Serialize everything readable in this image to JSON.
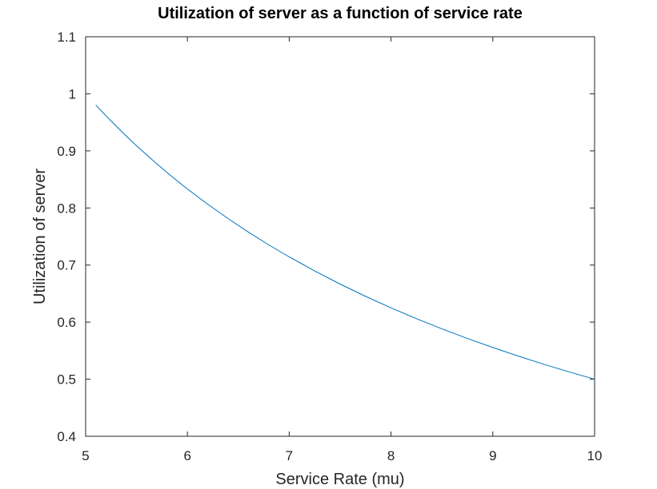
{
  "chart_data": {
    "type": "line",
    "title": "Utilization of server as a function of service rate",
    "xlabel": "Service Rate (mu)",
    "ylabel": "Utilization of server",
    "xlim": [
      5,
      10
    ],
    "ylim": [
      0.4,
      1.1
    ],
    "xticks": [
      5,
      6,
      7,
      8,
      9,
      10
    ],
    "xtick_labels": [
      "5",
      "6",
      "7",
      "8",
      "9",
      "10"
    ],
    "yticks": [
      0.4,
      0.5,
      0.6,
      0.7,
      0.8,
      0.9,
      1.0,
      1.1
    ],
    "ytick_labels": [
      "0.4",
      "0.5",
      "0.6",
      "0.7",
      "0.8",
      "0.9",
      "1",
      "1.1"
    ],
    "grid": false,
    "box": true,
    "series": [
      {
        "color": "#0072bd",
        "x": [
          5.1,
          5.2,
          5.3,
          5.4,
          5.5,
          5.6,
          5.7,
          5.8,
          5.9,
          6.0,
          6.2,
          6.4,
          6.6,
          6.8,
          7.0,
          7.25,
          7.5,
          7.75,
          8.0,
          8.25,
          8.5,
          8.75,
          9.0,
          9.25,
          9.5,
          9.75,
          10.0
        ],
        "y": [
          0.9804,
          0.9615,
          0.9434,
          0.9259,
          0.9091,
          0.8929,
          0.8772,
          0.8621,
          0.8475,
          0.8333,
          0.8065,
          0.7813,
          0.7576,
          0.7353,
          0.7143,
          0.6897,
          0.6667,
          0.6452,
          0.625,
          0.6061,
          0.5882,
          0.5714,
          0.5556,
          0.5405,
          0.5263,
          0.5128,
          0.5
        ]
      }
    ]
  }
}
